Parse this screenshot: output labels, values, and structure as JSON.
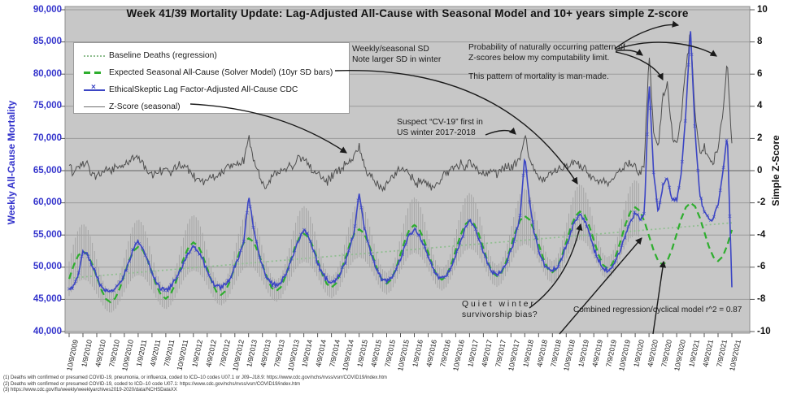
{
  "title": "Week 41/39 Mortality Update: Lag-Adjusted All-Cause with Seasonal Model and 10+ years simple Z-score",
  "y_left": {
    "title": "Weekly All-Cause Mortality",
    "ticks": [
      "90,000",
      "85,000",
      "80,000",
      "75,000",
      "70,000",
      "65,000",
      "60,000",
      "55,000",
      "50,000",
      "45,000",
      "40,000"
    ],
    "min": 40000,
    "max": 90000
  },
  "y_right": {
    "title": "Simple Z-Score",
    "ticks": [
      "10",
      "8",
      "6",
      "4",
      "2",
      "0",
      "-2",
      "-4",
      "-6",
      "-8",
      "-10"
    ],
    "min": -10,
    "max": 10
  },
  "x_axis": {
    "labels": [
      "10/9/2009",
      "1/9/2010",
      "4/9/2010",
      "7/9/2010",
      "10/9/2010",
      "1/9/2011",
      "4/9/2011",
      "7/9/2011",
      "10/9/2011",
      "1/9/2012",
      "4/9/2012",
      "7/9/2012",
      "10/9/2012",
      "1/9/2013",
      "4/9/2013",
      "7/9/2013",
      "10/9/2013",
      "1/9/2014",
      "4/9/2014",
      "7/9/2014",
      "10/9/2014",
      "1/9/2015",
      "4/9/2015",
      "7/9/2015",
      "10/9/2015",
      "1/9/2016",
      "4/9/2016",
      "7/9/2016",
      "10/9/2016",
      "1/9/2017",
      "4/9/2017",
      "7/9/2017",
      "10/9/2017",
      "1/9/2018",
      "4/9/2018",
      "7/9/2018",
      "10/9/2018",
      "1/9/2019",
      "4/9/2019",
      "7/9/2019",
      "10/9/2019",
      "1/9/2020",
      "4/9/2020",
      "7/9/2020",
      "10/9/2020",
      "1/9/2021",
      "4/9/2021",
      "7/9/2021",
      "10/9/2021"
    ]
  },
  "legend": {
    "items": [
      {
        "label": "Baseline Deaths (regression)",
        "swatch": "dotted"
      },
      {
        "label": "Expected Seasonal All-Cause (Solver Model) (10yr SD bars)",
        "swatch": "dashed"
      },
      {
        "label": "EthicalSkeptic Lag Factor-Adjusted All-Cause CDC",
        "swatch": "line-x"
      },
      {
        "label": "Z-Score (seasonal)",
        "swatch": "line"
      }
    ]
  },
  "annotations": {
    "weekly_sd": {
      "line1": "Weekly/seasonal SD",
      "line2": "Note larger SD in winter"
    },
    "probability": {
      "line1": "Probability of naturally occurring pattern of",
      "line2": "Z-scores below my computability limit."
    },
    "man_made": {
      "text": "This pattern of mortality is man-made."
    },
    "suspect": {
      "line1": "Suspect “CV-19” first in",
      "line2": "US winter 2017-2018"
    },
    "quiet_winter": {
      "line1": "Quiet winter",
      "line2": "survivorship bias?"
    },
    "combined": {
      "text": "Combined regression/cyclical model r^2 = 0.87"
    }
  },
  "footnotes": [
    "(1) Deaths with confirmed or presumed COVID-19, pneumonia, or influenza, coded to ICD–10 codes U07.1 or J09–J18.9: https://www.cdc.gov/nchs/nvss/vsrr/COVID19/index.htm",
    "(2) Deaths with confirmed or presumed COVID-19, coded to ICD–10 code U07.1: https://www.cdc.gov/nchs/nvss/vsrr/COVID19/index.htm",
    "(3) https://www.cdc.gov/flu/weekly/weeklyarchives2019-2020/data/NCHSDataXX"
  ],
  "colors": {
    "mortality_line": "#3b45c4",
    "seasonal_model": "#2eae2e",
    "baseline": "#8fbe8f",
    "z_score": "#4f4f4f",
    "sd_bars": "#a3a3a3",
    "plot_bg": "#c7c7c7",
    "plot_border": "#8f8f8f",
    "grid": "#9b9b9b",
    "grid_zero": "#777777",
    "axis_blue": "#3333cc"
  },
  "chart_data": {
    "type": "line",
    "x_monthly": {
      "start": "10/2009",
      "end": "10/2021",
      "points": 145
    },
    "xlabel": "",
    "ylabel_left": "Weekly All-Cause Mortality",
    "ylabel_right": "Simple Z-Score",
    "ylim_left": [
      40000,
      90000
    ],
    "ylim_right": [
      -10,
      10
    ],
    "series": [
      {
        "name": "Baseline Deaths (regression)",
        "axis": "left",
        "style": "dotted",
        "regression_line": {
          "start": 48300,
          "end": 56900
        }
      },
      {
        "name": "Expected Seasonal All-Cause (Solver Model)",
        "axis": "left",
        "style": "dashed",
        "values": [
          48200,
          50300,
          51850,
          52450,
          52000,
          50500,
          48500,
          46500,
          45050,
          44550,
          45150,
          46700,
          48850,
          50950,
          52550,
          53150,
          52650,
          51200,
          49150,
          47100,
          45650,
          45100,
          45750,
          47300,
          49450,
          51600,
          53200,
          53850,
          53350,
          51850,
          49800,
          47700,
          46200,
          45700,
          46300,
          47950,
          50100,
          52300,
          53900,
          54500,
          54000,
          52500,
          50400,
          48350,
          46800,
          46300,
          46900,
          48550,
          50750,
          52950,
          54550,
          55200,
          54700,
          53150,
          51050,
          48950,
          47400,
          46850,
          47500,
          49150,
          51350,
          53600,
          55250,
          55900,
          55350,
          53800,
          51700,
          49550,
          48000,
          47450,
          48100,
          49750,
          52000,
          54250,
          55950,
          56550,
          56050,
          54450,
          52300,
          50150,
          48600,
          48050,
          48700,
          50350,
          52650,
          54900,
          56600,
          57250,
          56700,
          55150,
          52950,
          50750,
          49150,
          48600,
          49250,
          50950,
          53250,
          55550,
          57300,
          57950,
          57400,
          55800,
          53600,
          51400,
          49750,
          49200,
          49850,
          51600,
          53900,
          56200,
          57950,
          58650,
          58100,
          56450,
          54200,
          52000,
          50350,
          49800,
          50450,
          52200,
          54550,
          56900,
          58650,
          59300,
          58750,
          57100,
          54850,
          52600,
          50950,
          50350,
          51050,
          52800,
          55150,
          57550,
          59300,
          60000,
          59450,
          57750,
          55500,
          53200,
          51550,
          50950,
          51650,
          53400,
          55800
        ]
      },
      {
        "name": "EthicalSkeptic Lag Factor-Adjusted All-Cause CDC",
        "axis": "left",
        "style": "line-x",
        "values": [
          46400,
          47300,
          48800,
          52400,
          51800,
          50300,
          48600,
          46900,
          46300,
          46200,
          46600,
          47400,
          48900,
          50800,
          52800,
          54100,
          52900,
          51200,
          49100,
          47500,
          46700,
          46500,
          46900,
          47800,
          49300,
          50900,
          52300,
          53200,
          52600,
          51200,
          49400,
          47800,
          47000,
          46800,
          47200,
          48300,
          50000,
          52000,
          54000,
          61300,
          56200,
          52700,
          50100,
          48300,
          47500,
          47300,
          47700,
          48800,
          50400,
          52400,
          54400,
          55900,
          54800,
          53000,
          50800,
          49000,
          47900,
          47600,
          48000,
          49200,
          50900,
          53200,
          55600,
          61800,
          56700,
          53700,
          51200,
          49400,
          48100,
          47800,
          48200,
          49400,
          51200,
          53400,
          55100,
          55900,
          55100,
          53600,
          51500,
          49800,
          48700,
          48300,
          48800,
          50000,
          51800,
          54000,
          56000,
          57400,
          56400,
          54600,
          52300,
          50400,
          49300,
          48900,
          49400,
          50700,
          52600,
          54900,
          57800,
          67400,
          60500,
          55500,
          52700,
          50800,
          49800,
          49500,
          50000,
          51300,
          53200,
          55400,
          57300,
          58400,
          57300,
          55300,
          52900,
          51000,
          49900,
          49500,
          50000,
          51300,
          53200,
          55400,
          57200,
          58400,
          57400,
          58200,
          79000,
          64500,
          58300,
          62800,
          63900,
          60600,
          60300,
          64500,
          74000,
          87200,
          71000,
          61500,
          58600,
          57300,
          57600,
          59800,
          64500,
          70800,
          47000
        ]
      },
      {
        "name": "Z-Score (seasonal)",
        "axis": "right",
        "style": "line",
        "values": [
          0.3,
          -0.2,
          0.2,
          0.6,
          0.3,
          -0.2,
          -0.4,
          -0.2,
          0.1,
          -0.1,
          0.2,
          0.3,
          0.4,
          0.5,
          0.7,
          0.9,
          0.4,
          -0.1,
          -0.3,
          -0.2,
          0.0,
          0.2,
          -0.1,
          0.2,
          0.4,
          0.3,
          0.1,
          -0.3,
          -0.6,
          -0.8,
          -0.5,
          -0.3,
          -0.5,
          -0.2,
          0.1,
          0.2,
          0.3,
          0.4,
          0.6,
          2.1,
          0.7,
          0.1,
          -0.7,
          -1.0,
          -0.5,
          -0.2,
          0.0,
          0.2,
          0.3,
          0.5,
          0.8,
          0.6,
          0.3,
          0.0,
          -0.3,
          -0.5,
          -0.7,
          -0.4,
          -0.1,
          0.1,
          0.3,
          0.6,
          0.9,
          1.6,
          0.4,
          -0.2,
          -0.5,
          -0.9,
          -1.3,
          -0.8,
          -0.4,
          -0.1,
          0.1,
          0.0,
          -0.3,
          -0.6,
          -0.8,
          -0.6,
          -0.8,
          -1.0,
          -0.7,
          -0.4,
          -0.1,
          0.1,
          0.2,
          0.4,
          0.3,
          0.5,
          0.2,
          -0.1,
          -0.3,
          -0.2,
          0.0,
          -0.2,
          0.1,
          0.3,
          0.2,
          0.4,
          0.9,
          2.3,
          0.9,
          0.2,
          -0.3,
          -0.6,
          -0.4,
          -0.1,
          0.1,
          0.2,
          0.3,
          0.4,
          0.5,
          0.3,
          0.1,
          -0.2,
          -0.5,
          -0.8,
          -0.6,
          -0.8,
          -0.4,
          -0.1,
          0.1,
          0.3,
          0.4,
          0.2,
          -0.1,
          0.5,
          7.2,
          2.6,
          1.3,
          4.6,
          5.4,
          2.3,
          1.7,
          3.4,
          6.2,
          8.7,
          3.4,
          1.1,
          1.5,
          0.8,
          0.6,
          1.4,
          3.4,
          7.0,
          1.5
        ]
      }
    ],
    "sd_bars": {
      "base": 1700,
      "winter_extra": 2600,
      "power": 1.4,
      "end_month": 124,
      "note": "10yr SD bars around seasonal model, larger in winter, shown through early 2020"
    }
  }
}
